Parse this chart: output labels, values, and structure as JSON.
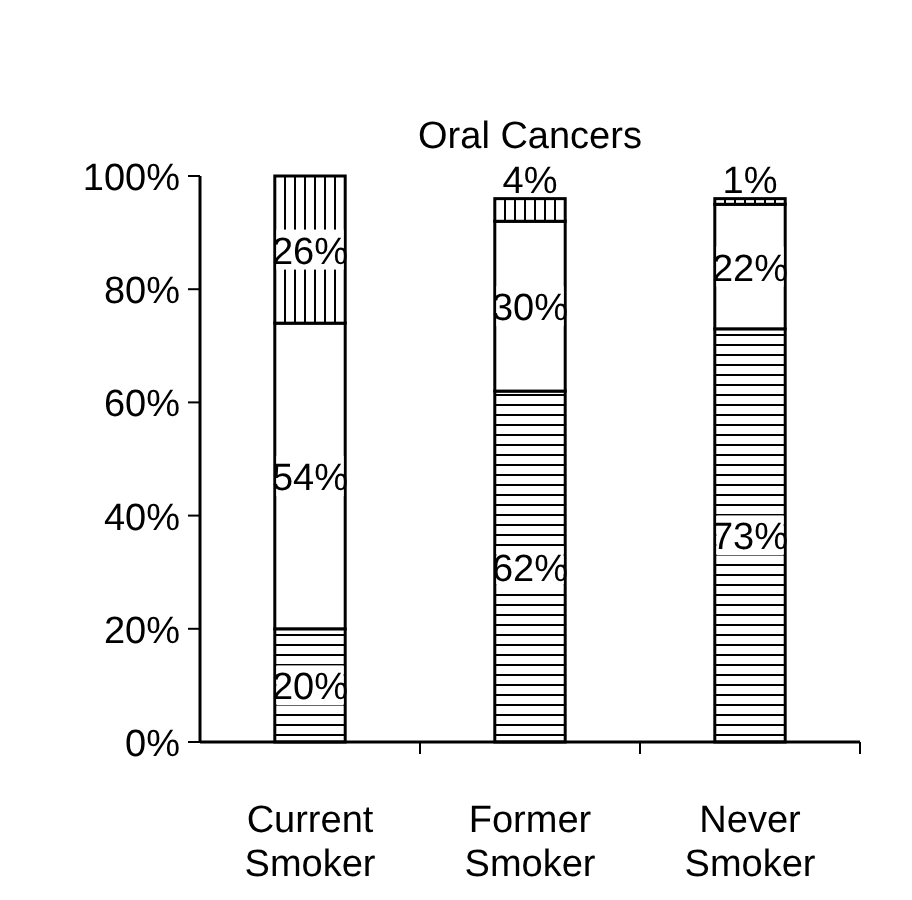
{
  "chart_data": {
    "type": "bar",
    "title": "Oral Cancers",
    "categories": [
      "Current Smoker",
      "Former Smoker",
      "Never Smoker"
    ],
    "stacked": true,
    "grid": false,
    "ylim": [
      0,
      100
    ],
    "yticks": [
      {
        "value": 0,
        "label": "0%"
      },
      {
        "value": 20,
        "label": "20%"
      },
      {
        "value": 40,
        "label": "40%"
      },
      {
        "value": 60,
        "label": "60%"
      },
      {
        "value": 80,
        "label": "80%"
      },
      {
        "value": 100,
        "label": "100%"
      }
    ],
    "series": [
      {
        "color": "#000000",
        "values": [
          20,
          62,
          73
        ],
        "value_labels": [
          "20%",
          "62%",
          "73%"
        ]
      },
      {
        "color": "#ffffff",
        "values": [
          54,
          30,
          22
        ],
        "value_labels": [
          "54%",
          "30%",
          "22%"
        ]
      },
      {
        "color": "#000000",
        "values": [
          26,
          4,
          1
        ],
        "value_labels": [
          "26%",
          "4%",
          "1%"
        ]
      }
    ]
  }
}
